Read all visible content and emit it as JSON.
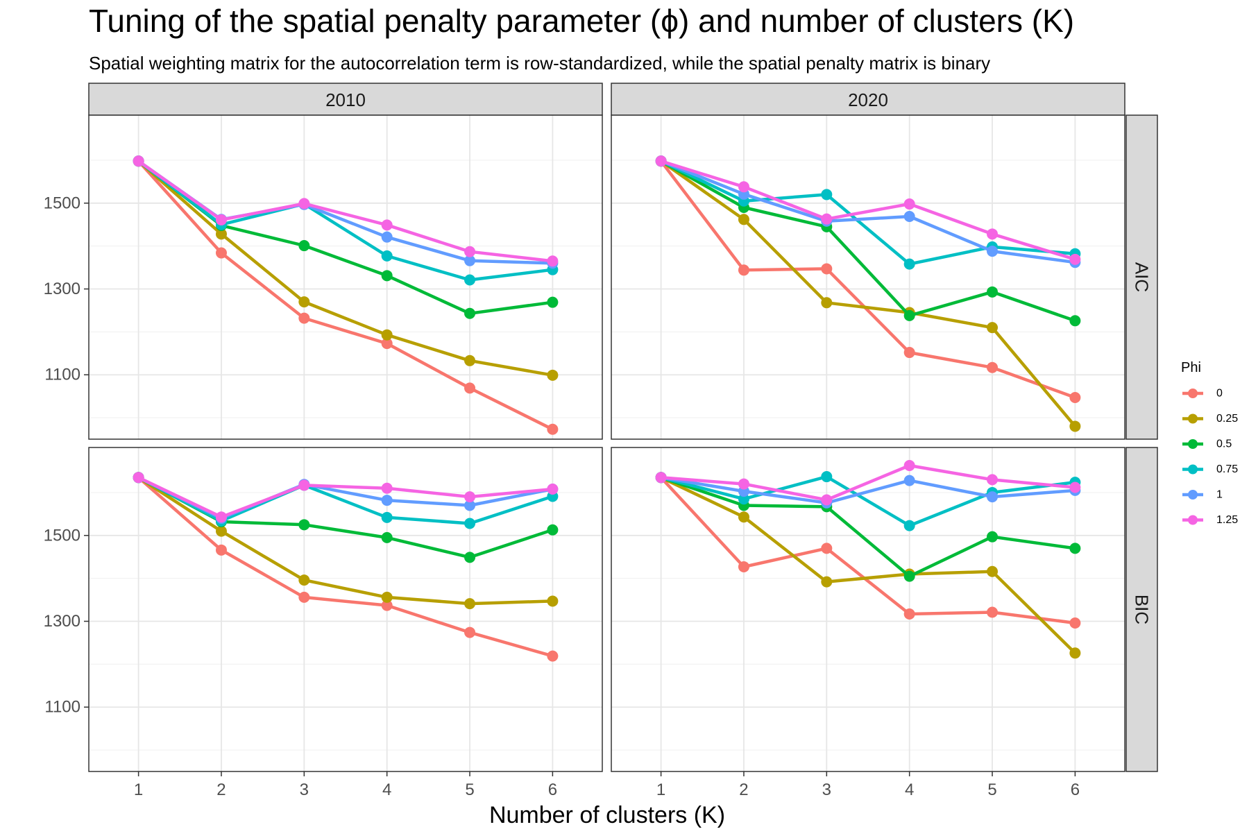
{
  "chart_data": {
    "type": "line",
    "title": "Tuning of the spatial penalty parameter (ϕ) and number of clusters (K)",
    "subtitle": "Spatial weighting matrix for the autocorrelation term is row-standardized, while the spatial penalty matrix is binary",
    "xlabel": "Number of clusters (K)",
    "ylabel": "",
    "x": [
      1,
      2,
      3,
      4,
      5,
      6
    ],
    "xlim": [
      0.4,
      6.6
    ],
    "ylim": [
      950,
      1705
    ],
    "y_ticks": [
      1100,
      1300,
      1500
    ],
    "grid": true,
    "legend": {
      "title": "Phi",
      "position": "right",
      "labels": [
        "0",
        "0.25",
        "0.5",
        "0.75",
        "1",
        "1.25"
      ],
      "colors": [
        "#F8766D",
        "#B79F00",
        "#00BA38",
        "#00BFC4",
        "#619CFF",
        "#F564E3"
      ]
    },
    "col_facets": [
      "2010",
      "2020"
    ],
    "row_facets": [
      "AIC",
      "BIC"
    ],
    "panels": [
      {
        "col": "2010",
        "row": "AIC",
        "series": [
          {
            "name": "0",
            "values": [
              1598,
              1384,
              1232,
              1173,
              1069,
              973
            ]
          },
          {
            "name": "0.25",
            "values": [
              1598,
              1428,
              1270,
              1193,
              1133,
              1099
            ]
          },
          {
            "name": "0.5",
            "values": [
              1598,
              1448,
              1401,
              1331,
              1243,
              1269
            ]
          },
          {
            "name": "0.75",
            "values": [
              1598,
              1450,
              1498,
              1377,
              1321,
              1345
            ]
          },
          {
            "name": "1",
            "values": [
              1598,
              1462,
              1497,
              1421,
              1366,
              1360
            ]
          },
          {
            "name": "1.25",
            "values": [
              1598,
              1461,
              1499,
              1449,
              1387,
              1365
            ]
          }
        ]
      },
      {
        "col": "2020",
        "row": "AIC",
        "series": [
          {
            "name": "0",
            "values": [
              1598,
              1344,
              1347,
              1152,
              1117,
              1047
            ]
          },
          {
            "name": "0.25",
            "values": [
              1598,
              1462,
              1268,
              1245,
              1210,
              980
            ]
          },
          {
            "name": "0.5",
            "values": [
              1598,
              1490,
              1445,
              1238,
              1293,
              1226
            ]
          },
          {
            "name": "0.75",
            "values": [
              1598,
              1505,
              1520,
              1358,
              1398,
              1382
            ]
          },
          {
            "name": "1",
            "values": [
              1598,
              1521,
              1458,
              1469,
              1388,
              1362
            ]
          },
          {
            "name": "1.25",
            "values": [
              1598,
              1538,
              1463,
              1498,
              1428,
              1369
            ]
          }
        ]
      },
      {
        "col": "2010",
        "row": "BIC",
        "series": [
          {
            "name": "0",
            "values": [
              1635,
              1466,
              1356,
              1337,
              1274,
              1219
            ]
          },
          {
            "name": "0.25",
            "values": [
              1635,
              1510,
              1396,
              1356,
              1341,
              1347
            ]
          },
          {
            "name": "0.5",
            "values": [
              1635,
              1532,
              1525,
              1495,
              1449,
              1513
            ]
          },
          {
            "name": "0.75",
            "values": [
              1635,
              1534,
              1617,
              1542,
              1528,
              1591
            ]
          },
          {
            "name": "1",
            "values": [
              1635,
              1540,
              1619,
              1582,
              1570,
              1608
            ]
          },
          {
            "name": "1.25",
            "values": [
              1635,
              1543,
              1617,
              1610,
              1590,
              1608
            ]
          }
        ]
      },
      {
        "col": "2020",
        "row": "BIC",
        "series": [
          {
            "name": "0",
            "values": [
              1635,
              1427,
              1470,
              1317,
              1321,
              1296
            ]
          },
          {
            "name": "0.25",
            "values": [
              1635,
              1543,
              1392,
              1410,
              1416,
              1226
            ]
          },
          {
            "name": "0.5",
            "values": [
              1635,
              1570,
              1567,
              1405,
              1497,
              1470
            ]
          },
          {
            "name": "0.75",
            "values": [
              1635,
              1585,
              1637,
              1523,
              1600,
              1624
            ]
          },
          {
            "name": "1",
            "values": [
              1635,
              1603,
              1576,
              1628,
              1590,
              1605
            ]
          },
          {
            "name": "1.25",
            "values": [
              1635,
              1620,
              1583,
              1663,
              1630,
              1612
            ]
          }
        ]
      }
    ]
  }
}
